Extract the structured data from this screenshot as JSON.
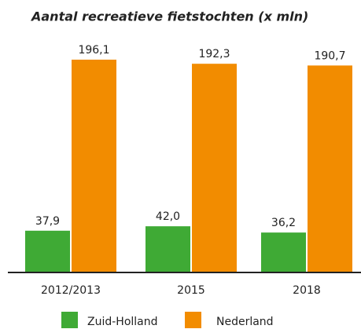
{
  "chart_data": {
    "type": "bar",
    "title": "Aantal recreatieve fietstochten (x mln)",
    "categories": [
      "2012/2013",
      "2015",
      "2018"
    ],
    "series": [
      {
        "name": "Zuid-Holland",
        "color": "#3faa35",
        "values": [
          37.9,
          42.0,
          36.2
        ],
        "value_labels": [
          "37,9",
          "42,0",
          "36,2"
        ]
      },
      {
        "name": "Nederland",
        "color": "#f28c00",
        "values": [
          196.1,
          192.3,
          190.7
        ],
        "value_labels": [
          "196,1",
          "192,3",
          "190,7"
        ]
      }
    ]
  }
}
